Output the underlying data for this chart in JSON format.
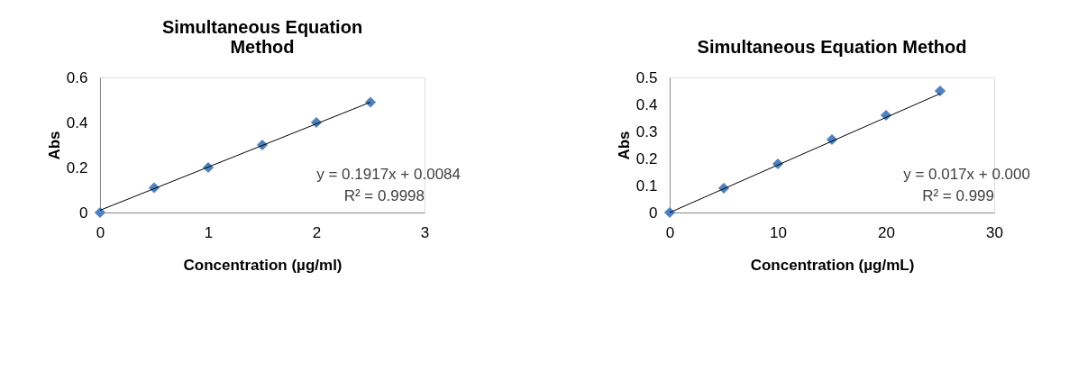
{
  "chart_data": [
    {
      "type": "scatter",
      "title": [
        "Simultaneous Equation",
        "Method"
      ],
      "xlabel": "Concentration (µg/ml)",
      "ylabel": "Abs",
      "x": [
        0,
        0.5,
        1,
        1.5,
        2,
        2.5
      ],
      "series": [
        {
          "color": "#4f81bd",
          "marker": "diamond",
          "values": [
            0,
            0.11,
            0.2,
            0.3,
            0.4,
            0.49
          ]
        },
        {
          "type": "line",
          "color": "#000000",
          "marker": "none",
          "x": [
            0,
            2.5
          ],
          "values": [
            0.01,
            0.49
          ]
        }
      ],
      "annotations": [
        "y = 0.1917x + 0.0084",
        "R² = 0.9998"
      ],
      "xlim": [
        0,
        3
      ],
      "xticks": [
        0,
        1,
        2,
        3
      ],
      "ylim": [
        0,
        0.6
      ],
      "yticks": [
        0,
        0.2,
        0.4,
        0.6
      ],
      "grid": false
    },
    {
      "type": "scatter",
      "title": [
        "Simultaneous Equation Method"
      ],
      "xlabel": "Concentration (µg/mL)",
      "ylabel": "Abs",
      "x": [
        0,
        5,
        10,
        15,
        20,
        25
      ],
      "series": [
        {
          "color": "#4f81bd",
          "marker": "diamond",
          "values": [
            0,
            0.09,
            0.18,
            0.27,
            0.36,
            0.45
          ]
        },
        {
          "type": "line",
          "color": "#000000",
          "marker": "none",
          "x": [
            0,
            25
          ],
          "values": [
            0,
            0.44
          ]
        }
      ],
      "annotations": [
        "y = 0.017x + 0.000",
        "R² = 0.999"
      ],
      "xlim": [
        0,
        30
      ],
      "xticks": [
        0,
        10,
        20,
        30
      ],
      "ylim": [
        0,
        0.5
      ],
      "yticks": [
        0,
        0.1,
        0.2,
        0.3,
        0.4,
        0.5
      ],
      "grid": false
    }
  ]
}
